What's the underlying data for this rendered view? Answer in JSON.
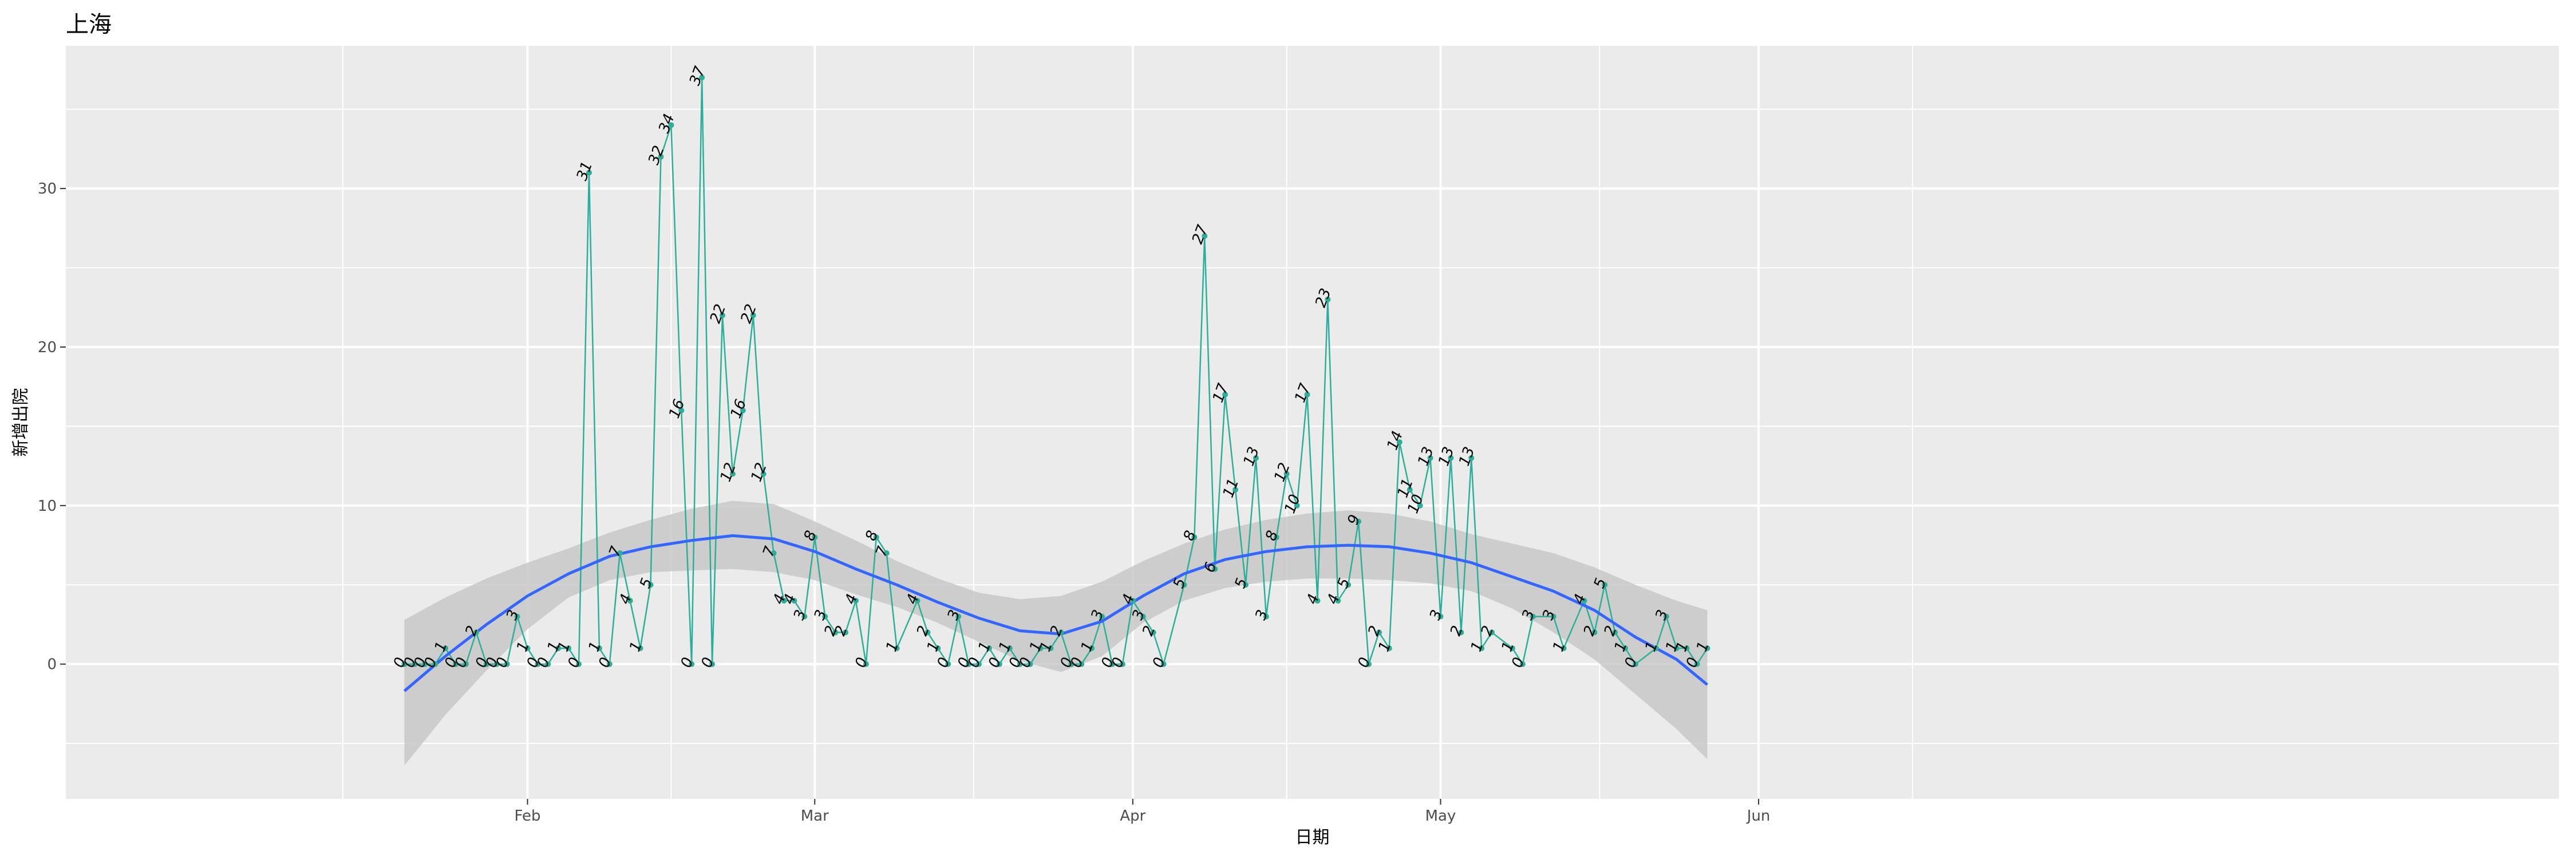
{
  "chart_data": {
    "type": "line",
    "title": "上海",
    "xlabel": "日期",
    "ylabel": "新增出院",
    "x_tick_labels": [
      "Feb",
      "Mar",
      "Apr",
      "May",
      "Jun"
    ],
    "y_tick_labels": [
      "0",
      "10",
      "20",
      "30"
    ],
    "ylim": [
      -8.5,
      39
    ],
    "day_offset_range": [
      -45,
      198
    ],
    "x_ticks_day_offsets": [
      0,
      28,
      59,
      89,
      120
    ],
    "y_ticks": [
      0,
      10,
      20,
      30
    ],
    "series": [
      {
        "name": "新增出院",
        "color": "#2ab09a",
        "points": [
          [
            -12,
            0
          ],
          [
            -11,
            0
          ],
          [
            -10,
            0
          ],
          [
            -9,
            0
          ],
          [
            -8,
            1
          ],
          [
            -7,
            0
          ],
          [
            -6,
            0
          ],
          [
            -5,
            2
          ],
          [
            -4,
            0
          ],
          [
            -3,
            0
          ],
          [
            -2,
            0
          ],
          [
            -1,
            3
          ],
          [
            0,
            1
          ],
          [
            1,
            0
          ],
          [
            2,
            0
          ],
          [
            3,
            1
          ],
          [
            4,
            1
          ],
          [
            5,
            0
          ],
          [
            6,
            31
          ],
          [
            7,
            1
          ],
          [
            8,
            0
          ],
          [
            9,
            7
          ],
          [
            10,
            4
          ],
          [
            11,
            1
          ],
          [
            12,
            5
          ],
          [
            13,
            32
          ],
          [
            14,
            34
          ],
          [
            15,
            16
          ],
          [
            16,
            0
          ],
          [
            17,
            37
          ],
          [
            18,
            0
          ],
          [
            19,
            22
          ],
          [
            20,
            12
          ],
          [
            21,
            16
          ],
          [
            22,
            22
          ],
          [
            23,
            12
          ],
          [
            24,
            7
          ],
          [
            25,
            4
          ],
          [
            26,
            4
          ],
          [
            27,
            3
          ],
          [
            28,
            8
          ],
          [
            29,
            3
          ],
          [
            30,
            2
          ],
          [
            31,
            2
          ],
          [
            32,
            4
          ],
          [
            33,
            0
          ],
          [
            34,
            8
          ],
          [
            35,
            7
          ],
          [
            36,
            1
          ],
          [
            38,
            4
          ],
          [
            39,
            2
          ],
          [
            40,
            1
          ],
          [
            41,
            0
          ],
          [
            42,
            3
          ],
          [
            43,
            0
          ],
          [
            44,
            0
          ],
          [
            45,
            1
          ],
          [
            46,
            0
          ],
          [
            47,
            1
          ],
          [
            48,
            0
          ],
          [
            49,
            0
          ],
          [
            50,
            1
          ],
          [
            51,
            1
          ],
          [
            52,
            2
          ],
          [
            53,
            0
          ],
          [
            54,
            0
          ],
          [
            55,
            1
          ],
          [
            56,
            3
          ],
          [
            57,
            0
          ],
          [
            58,
            0
          ],
          [
            59,
            4
          ],
          [
            60,
            3
          ],
          [
            61,
            2
          ],
          [
            62,
            0
          ],
          [
            64,
            5
          ],
          [
            65,
            8
          ],
          [
            66,
            27
          ],
          [
            67,
            6
          ],
          [
            68,
            17
          ],
          [
            69,
            11
          ],
          [
            70,
            5
          ],
          [
            71,
            13
          ],
          [
            72,
            3
          ],
          [
            73,
            8
          ],
          [
            74,
            12
          ],
          [
            75,
            10
          ],
          [
            76,
            17
          ],
          [
            77,
            4
          ],
          [
            78,
            23
          ],
          [
            79,
            4
          ],
          [
            80,
            5
          ],
          [
            81,
            9
          ],
          [
            82,
            0
          ],
          [
            83,
            2
          ],
          [
            84,
            1
          ],
          [
            85,
            14
          ],
          [
            86,
            11
          ],
          [
            87,
            10
          ],
          [
            88,
            13
          ],
          [
            89,
            3
          ],
          [
            90,
            13
          ],
          [
            91,
            2
          ],
          [
            92,
            13
          ],
          [
            93,
            1
          ],
          [
            94,
            2
          ],
          [
            96,
            1
          ],
          [
            97,
            0
          ],
          [
            98,
            3
          ],
          [
            100,
            3
          ],
          [
            101,
            1
          ],
          [
            103,
            4
          ],
          [
            104,
            2
          ],
          [
            105,
            5
          ],
          [
            106,
            2
          ],
          [
            107,
            1
          ],
          [
            108,
            0
          ],
          [
            110,
            1
          ],
          [
            111,
            3
          ],
          [
            112,
            1
          ],
          [
            113,
            1
          ],
          [
            114,
            0
          ],
          [
            115,
            1
          ]
        ]
      }
    ],
    "smooth": {
      "color": "#3366ff",
      "band_color": "#c8c8c8",
      "points": [
        [
          -12,
          -1.7,
          -6.4,
          2.8
        ],
        [
          -8,
          0.5,
          -3.2,
          4.2
        ],
        [
          -4,
          2.5,
          -0.4,
          5.4
        ],
        [
          0,
          4.3,
          2.2,
          6.4
        ],
        [
          4,
          5.7,
          4.2,
          7.3
        ],
        [
          8,
          6.8,
          5.3,
          8.3
        ],
        [
          12,
          7.4,
          5.8,
          9.1
        ],
        [
          16,
          7.8,
          5.9,
          9.8
        ],
        [
          20,
          8.1,
          6.0,
          10.3
        ],
        [
          24,
          7.9,
          5.8,
          10.1
        ],
        [
          28,
          7.1,
          5.3,
          9.0
        ],
        [
          32,
          6.0,
          4.4,
          7.8
        ],
        [
          36,
          5.0,
          3.6,
          6.5
        ],
        [
          40,
          3.9,
          2.6,
          5.4
        ],
        [
          44,
          2.9,
          1.4,
          4.5
        ],
        [
          48,
          2.1,
          0.2,
          4.1
        ],
        [
          52,
          1.9,
          -0.5,
          4.3
        ],
        [
          56,
          2.7,
          0.5,
          5.2
        ],
        [
          60,
          4.3,
          2.6,
          6.5
        ],
        [
          64,
          5.7,
          4.0,
          7.6
        ],
        [
          68,
          6.6,
          4.8,
          8.5
        ],
        [
          72,
          7.1,
          5.2,
          9.1
        ],
        [
          76,
          7.4,
          5.4,
          9.5
        ],
        [
          80,
          7.5,
          5.4,
          9.7
        ],
        [
          84,
          7.4,
          5.3,
          9.5
        ],
        [
          88,
          7.0,
          5.1,
          9.0
        ],
        [
          92,
          6.4,
          4.6,
          8.2
        ],
        [
          96,
          5.5,
          3.5,
          7.6
        ],
        [
          100,
          4.6,
          2.0,
          7.0
        ],
        [
          104,
          3.4,
          0.3,
          6.1
        ],
        [
          108,
          1.7,
          -1.9,
          5.0
        ],
        [
          112,
          0.3,
          -4.1,
          4.0
        ],
        [
          115,
          -1.3,
          -6.0,
          3.4
        ]
      ]
    }
  }
}
